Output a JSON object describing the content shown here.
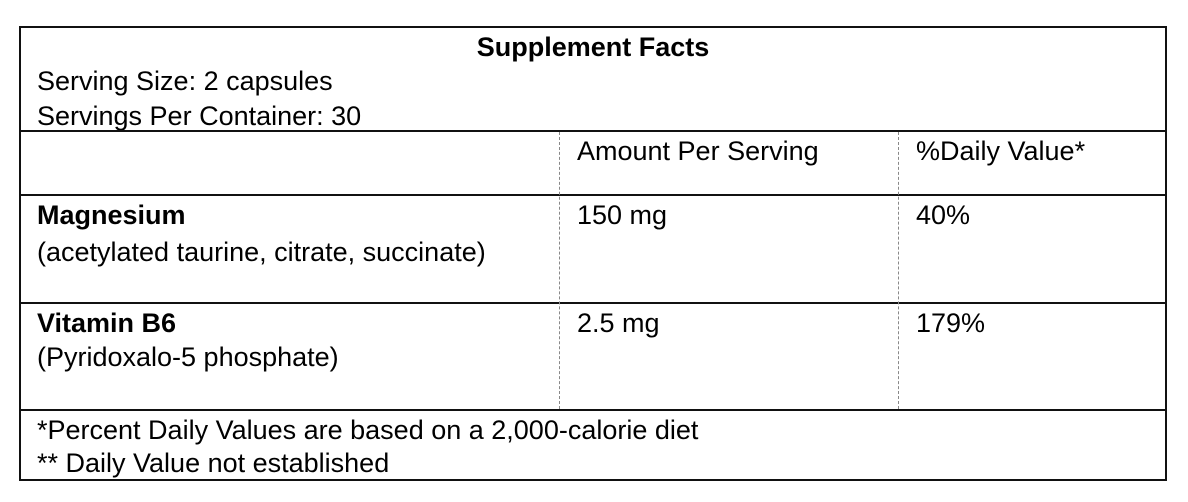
{
  "title": "Supplement Facts",
  "serving_size": "Serving Size: 2 capsules",
  "servings_per_container": "Servings Per Container: 30",
  "columns": {
    "amount": "Amount Per Serving",
    "daily_value": "%Daily Value*"
  },
  "rows": [
    {
      "name": "Magnesium",
      "detail": "(acetylated taurine, citrate, succinate)",
      "amount": "150 mg",
      "daily_value": "40%"
    },
    {
      "name": "Vitamin B6",
      "detail": "(Pyridoxalo-5 phosphate)",
      "amount": "2.5 mg",
      "daily_value": "179%"
    }
  ],
  "footnotes": [
    "*Percent Daily Values are based on a 2,000-calorie diet",
    "** Daily Value not established"
  ]
}
